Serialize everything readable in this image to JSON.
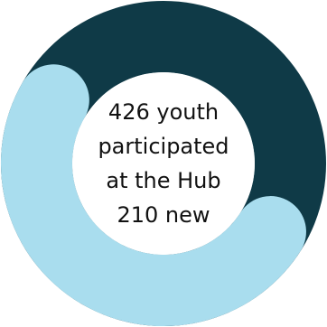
{
  "chart_data": {
    "type": "pie",
    "variant": "donut",
    "total": 426,
    "values": [
      216,
      210
    ],
    "colors": [
      "#0f3a47",
      "#a9ddee"
    ],
    "center_text": {
      "line1": "426 youth",
      "line2": "participated",
      "line3": "at the Hub",
      "line4": "210 new"
    }
  }
}
